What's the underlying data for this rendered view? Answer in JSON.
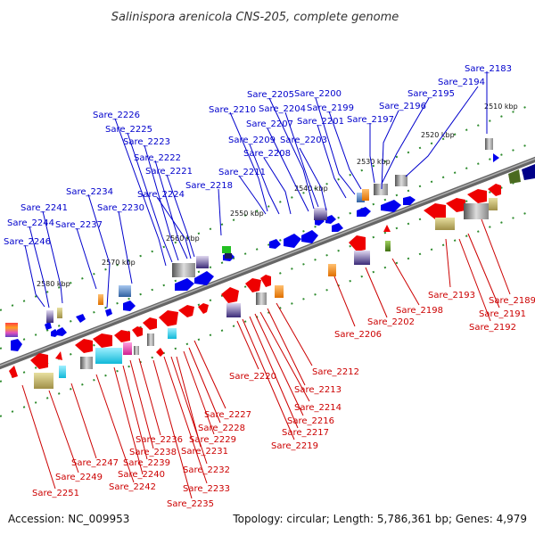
{
  "title": "Salinispora arenicola CNS-205, complete genome",
  "accession": "Accession: NC_009953",
  "topology": "Topology: circular; Length: 5,786,361 bp; Genes: 4,979",
  "colors": {
    "forward_label": "#0000cc",
    "reverse_label": "#cc0000",
    "forward_gene": "#0000ee",
    "reverse_gene": "#ee0000",
    "backbone": "#777777",
    "tick": "#2e8b2e"
  },
  "kbp_ticks": [
    "2510 kbp",
    "2520 kbp",
    "2530 kbp",
    "2540 kbp",
    "2550 kbp",
    "2560 kbp",
    "2570 kbp",
    "2580 kbp"
  ],
  "forward_genes": [
    {
      "label": "Sare_2183"
    },
    {
      "label": "Sare_2194"
    },
    {
      "label": "Sare_2195"
    },
    {
      "label": "Sare_2196"
    },
    {
      "label": "Sare_2197"
    },
    {
      "label": "Sare_2199"
    },
    {
      "label": "Sare_2200"
    },
    {
      "label": "Sare_2201"
    },
    {
      "label": "Sare_2203"
    },
    {
      "label": "Sare_2204"
    },
    {
      "label": "Sare_2205"
    },
    {
      "label": "Sare_2207"
    },
    {
      "label": "Sare_2208"
    },
    {
      "label": "Sare_2209"
    },
    {
      "label": "Sare_2210"
    },
    {
      "label": "Sare_2211"
    },
    {
      "label": "Sare_2218"
    },
    {
      "label": "Sare_2221"
    },
    {
      "label": "Sare_2222"
    },
    {
      "label": "Sare_2223"
    },
    {
      "label": "Sare_2224"
    },
    {
      "label": "Sare_2225"
    },
    {
      "label": "Sare_2226"
    },
    {
      "label": "Sare_2230"
    },
    {
      "label": "Sare_2234"
    },
    {
      "label": "Sare_2237"
    },
    {
      "label": "Sare_2241"
    },
    {
      "label": "Sare_2244"
    },
    {
      "label": "Sare_2246"
    }
  ],
  "reverse_genes": [
    {
      "label": "Sare_2189"
    },
    {
      "label": "Sare_2191"
    },
    {
      "label": "Sare_2192"
    },
    {
      "label": "Sare_2193"
    },
    {
      "label": "Sare_2198"
    },
    {
      "label": "Sare_2202"
    },
    {
      "label": "Sare_2206"
    },
    {
      "label": "Sare_2212"
    },
    {
      "label": "Sare_2213"
    },
    {
      "label": "Sare_2214"
    },
    {
      "label": "Sare_2216"
    },
    {
      "label": "Sare_2217"
    },
    {
      "label": "Sare_2219"
    },
    {
      "label": "Sare_2220"
    },
    {
      "label": "Sare_2227"
    },
    {
      "label": "Sare_2228"
    },
    {
      "label": "Sare_2229"
    },
    {
      "label": "Sare_2231"
    },
    {
      "label": "Sare_2232"
    },
    {
      "label": "Sare_2233"
    },
    {
      "label": "Sare_2235"
    },
    {
      "label": "Sare_2236"
    },
    {
      "label": "Sare_2238"
    },
    {
      "label": "Sare_2239"
    },
    {
      "label": "Sare_2240"
    },
    {
      "label": "Sare_2242"
    },
    {
      "label": "Sare_2247"
    },
    {
      "label": "Sare_2249"
    },
    {
      "label": "Sare_2251"
    }
  ]
}
